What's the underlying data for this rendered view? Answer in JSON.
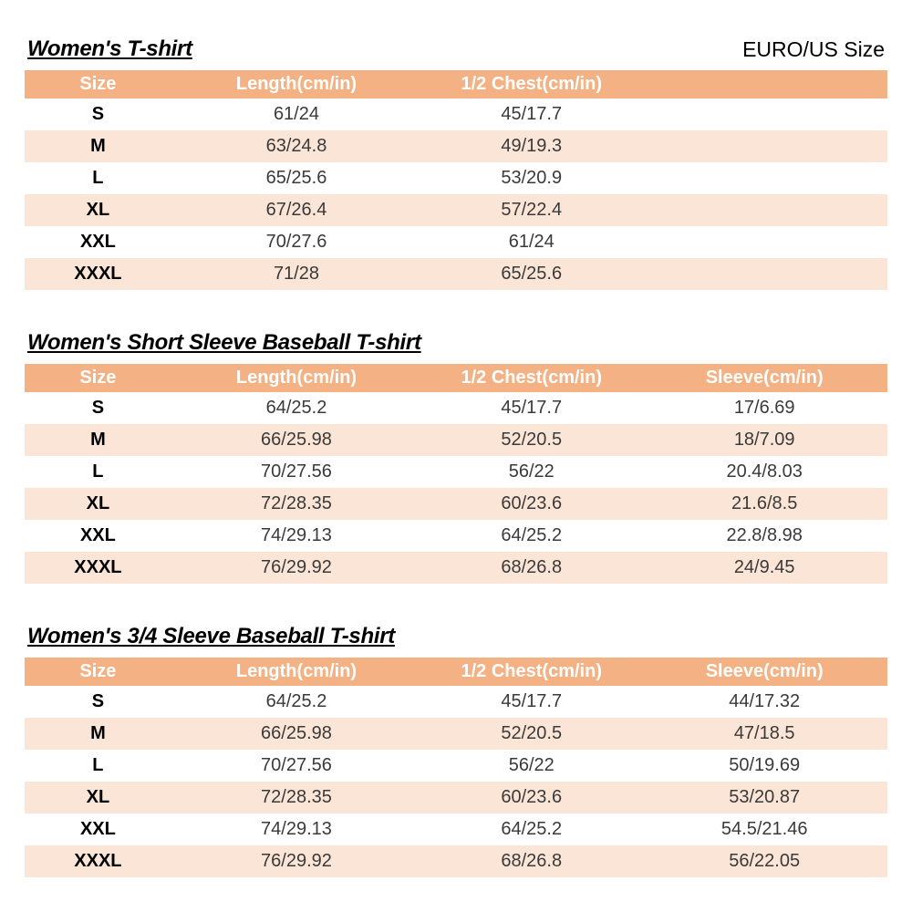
{
  "page": {
    "size_standard": "EURO/US Size"
  },
  "tables": [
    {
      "title": "Women's T-shirt",
      "columns": [
        "Size",
        "Length(cm/in)",
        "1/2 Chest(cm/in)",
        ""
      ],
      "rows": [
        [
          "S",
          "61/24",
          "45/17.7",
          ""
        ],
        [
          "M",
          "63/24.8",
          "49/19.3",
          ""
        ],
        [
          "L",
          "65/25.6",
          "53/20.9",
          ""
        ],
        [
          "XL",
          "67/26.4",
          "57/22.4",
          ""
        ],
        [
          "XXL",
          "70/27.6",
          "61/24",
          ""
        ],
        [
          "XXXL",
          "71/28",
          "65/25.6",
          ""
        ]
      ]
    },
    {
      "title": "Women's Short Sleeve Baseball T-shirt",
      "columns": [
        "Size",
        "Length(cm/in)",
        "1/2 Chest(cm/in)",
        "Sleeve(cm/in)"
      ],
      "rows": [
        [
          "S",
          "64/25.2",
          "45/17.7",
          "17/6.69"
        ],
        [
          "M",
          "66/25.98",
          "52/20.5",
          "18/7.09"
        ],
        [
          "L",
          "70/27.56",
          "56/22",
          "20.4/8.03"
        ],
        [
          "XL",
          "72/28.35",
          "60/23.6",
          "21.6/8.5"
        ],
        [
          "XXL",
          "74/29.13",
          "64/25.2",
          "22.8/8.98"
        ],
        [
          "XXXL",
          "76/29.92",
          "68/26.8",
          "24/9.45"
        ]
      ]
    },
    {
      "title": "Women's 3/4 Sleeve Baseball T-shirt",
      "columns": [
        "Size",
        "Length(cm/in)",
        "1/2 Chest(cm/in)",
        "Sleeve(cm/in)"
      ],
      "rows": [
        [
          "S",
          "64/25.2",
          "45/17.7",
          "44/17.32"
        ],
        [
          "M",
          "66/25.98",
          "52/20.5",
          "47/18.5"
        ],
        [
          "L",
          "70/27.56",
          "56/22",
          "50/19.69"
        ],
        [
          "XL",
          "72/28.35",
          "60/23.6",
          "53/20.87"
        ],
        [
          "XXL",
          "74/29.13",
          "64/25.2",
          "54.5/21.46"
        ],
        [
          "XXXL",
          "76/29.92",
          "68/26.8",
          "56/22.05"
        ]
      ]
    }
  ],
  "colors": {
    "header_bg": "#F4B183",
    "alt_row_bg": "#FBE5D6",
    "header_text": "#FFFFFF"
  }
}
